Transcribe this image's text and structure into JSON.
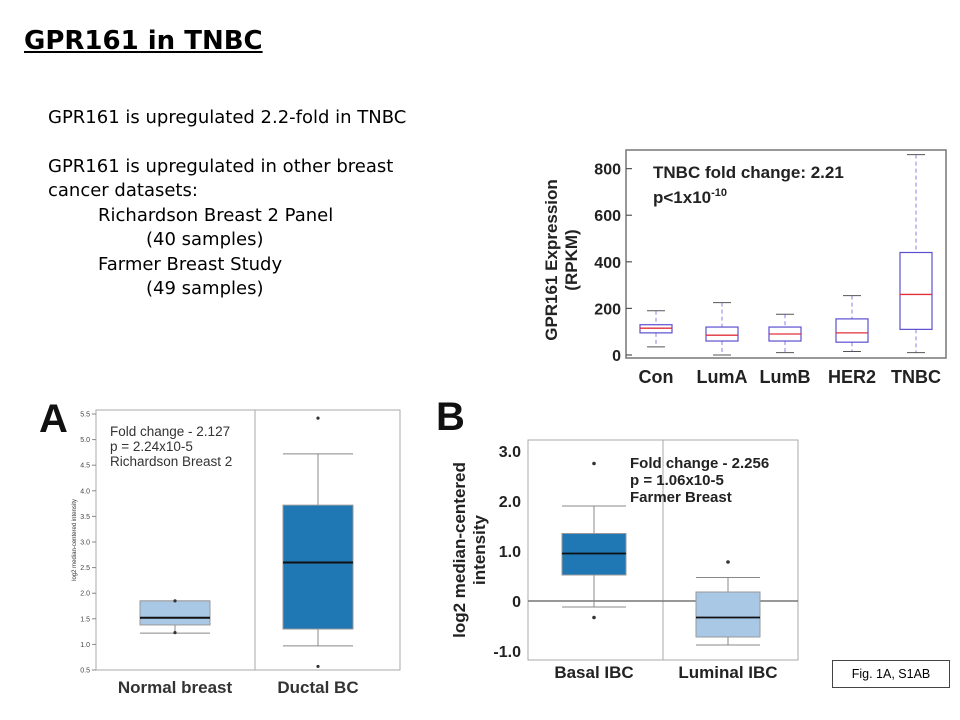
{
  "slide": {
    "title": "GPR161 in TNBC",
    "body": {
      "line1": "GPR161 is upregulated 2.2-fold in TNBC",
      "line2a": "GPR161 is upregulated in other breast",
      "line2b": "cancer datasets:",
      "dataset1_name": "Richardson Breast 2 Panel",
      "dataset1_samples": "(40 samples)",
      "dataset2_name": "Farmer Breast Study",
      "dataset2_samples": "(49 samples)"
    },
    "figure_ref": "Fig. 1A, S1AB"
  },
  "chart_data": [
    {
      "type": "box",
      "ylabel_line1": "GPR161 Expression",
      "ylabel_line2": "(RPKM)",
      "annotation_line1": "TNBC fold change: 2.21",
      "annotation_p": "p<1x10",
      "annotation_exp": "-10",
      "ylim": [
        0,
        880
      ],
      "yticks": [
        "0",
        "200",
        "400",
        "600",
        "800"
      ],
      "categories": [
        "Con",
        "LumA",
        "LumB",
        "HER2",
        "TNBC"
      ],
      "boxes": [
        {
          "min": 35,
          "q1": 95,
          "median": 115,
          "q3": 130,
          "max": 190
        },
        {
          "min": 0,
          "q1": 60,
          "median": 85,
          "q3": 120,
          "max": 225
        },
        {
          "min": 10,
          "q1": 60,
          "median": 90,
          "q3": 120,
          "max": 175
        },
        {
          "min": 15,
          "q1": 55,
          "median": 95,
          "q3": 155,
          "max": 255
        },
        {
          "min": 10,
          "q1": 110,
          "median": 260,
          "q3": 440,
          "max": 860
        }
      ],
      "colors": {
        "box": "#5b4fd0",
        "median": "#e0303a",
        "whisker": "#8a82e8"
      }
    },
    {
      "type": "box",
      "panel_letter": "A",
      "annotation": [
        "Fold change - 2.127",
        "p = 2.24x10-5",
        "Richardson Breast 2"
      ],
      "ylabel": "log2 median-centered intensity",
      "ylim": [
        0.5,
        5.5
      ],
      "yticks": [
        "0.5",
        "1.0",
        "1.5",
        "2.0",
        "2.5",
        "3.0",
        "3.5",
        "4.0",
        "4.5",
        "5.0",
        "5.5"
      ],
      "categories": [
        "Normal breast",
        "Ductal BC"
      ],
      "boxes": [
        {
          "min": 1.22,
          "q1": 1.38,
          "median": 1.52,
          "q3": 1.85,
          "max": 1.85,
          "outliers": [
            1.23,
            1.85
          ]
        },
        {
          "min": 0.97,
          "q1": 1.3,
          "median": 2.6,
          "q3": 3.72,
          "max": 4.72,
          "outliers": [
            5.42,
            0.57
          ]
        }
      ],
      "colors": {
        "box0": "#a8c8e6",
        "box1": "#1f77b4",
        "median": "#111111"
      }
    },
    {
      "type": "box",
      "panel_letter": "B",
      "annotation": [
        "Fold change - 2.256",
        "p = 1.06x10-5",
        "Farmer Breast"
      ],
      "ylabel_line1": "log2 median-centered",
      "ylabel_line2": "intensity",
      "ylim": [
        -1.1,
        3.1
      ],
      "yticks": [
        "3.0",
        "2.0",
        "1.0",
        "0",
        "-1.0"
      ],
      "categories": [
        "Basal IBC",
        "Luminal IBC"
      ],
      "boxes": [
        {
          "min": -0.12,
          "q1": 0.52,
          "median": 0.95,
          "q3": 1.35,
          "max": 1.9,
          "outliers": [
            2.75,
            -0.33
          ]
        },
        {
          "min": -0.88,
          "q1": -0.72,
          "median": -0.33,
          "q3": 0.18,
          "max": 0.47,
          "outliers": [
            0.78
          ]
        }
      ],
      "colors": {
        "box0": "#1f77b4",
        "box1": "#a8c8e6",
        "median": "#111111"
      }
    }
  ]
}
